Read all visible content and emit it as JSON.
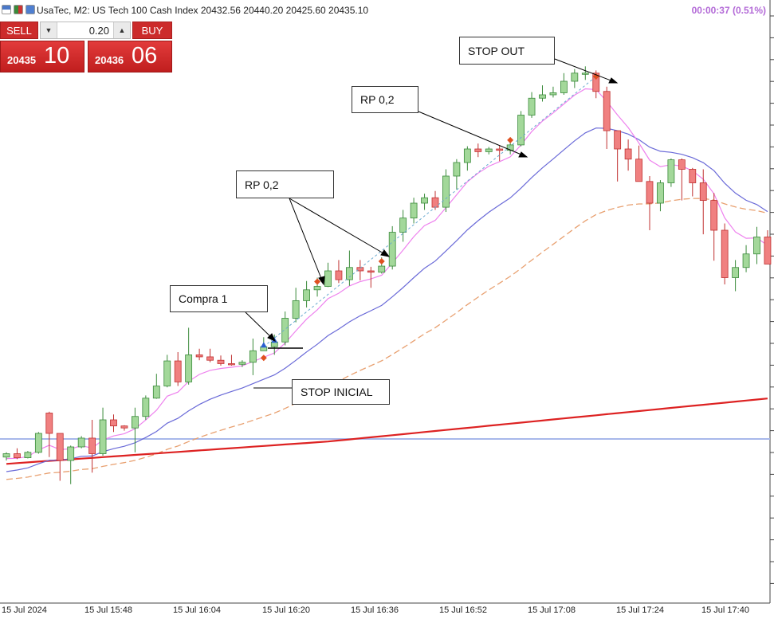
{
  "header": {
    "title": "UsaTec, M2:  US Tech 100 Cash Index  20432.56 20440.20 20425.60 20435.10",
    "timer": "00:00:37 (0.51%)"
  },
  "trade_panel": {
    "sell_label": "SELL",
    "buy_label": "BUY",
    "volume": "0.20",
    "sell_price_small": "20435",
    "sell_price_big": "10",
    "buy_price_small": "20436",
    "buy_price_big": "06"
  },
  "colors": {
    "bull": "#a3d89a",
    "bear": "#f08080",
    "ma_fast": "#ee82ee",
    "ma_mid": "#6a6ad8",
    "ma_slow": "#e8a070",
    "ma_long": "#dd2222"
  },
  "annotations": [
    {
      "id": "compra-1",
      "text": "Compra 1"
    },
    {
      "id": "stop-inicial",
      "text": "STOP INICIAL"
    },
    {
      "id": "rp-1",
      "text": "RP 0,2"
    },
    {
      "id": "rp-2",
      "text": "RP 0,2"
    },
    {
      "id": "stop-out",
      "text": "STOP OUT"
    }
  ],
  "chart_data": {
    "type": "candlestick",
    "symbol": "UsaTec",
    "timeframe": "M2",
    "x_tick_labels": [
      "15 Jul 2024",
      "15 Jul 15:48",
      "15 Jul 16:04",
      "15 Jul 16:20",
      "15 Jul 16:36",
      "15 Jul 16:52",
      "15 Jul 17:08",
      "15 Jul 17:24",
      "15 Jul 17:40"
    ],
    "candles": [
      {
        "o": 20,
        "c": 20,
        "h": 20,
        "l": 20
      }
    ],
    "y_units": "relative",
    "ohlc": [
      [
        45,
        50,
        52,
        40
      ],
      [
        50,
        44,
        58,
        42
      ],
      [
        44,
        52,
        54,
        43
      ],
      [
        52,
        80,
        82,
        50
      ],
      [
        110,
        80,
        112,
        45
      ],
      [
        80,
        40,
        45,
        10
      ],
      [
        40,
        60,
        62,
        5
      ],
      [
        60,
        73,
        76,
        58
      ],
      [
        73,
        50,
        100,
        22
      ],
      [
        50,
        100,
        118,
        47
      ],
      [
        100,
        91,
        108,
        82
      ],
      [
        91,
        88,
        92,
        84
      ],
      [
        88,
        105,
        118,
        52
      ],
      [
        105,
        132,
        136,
        100
      ],
      [
        132,
        150,
        168,
        131
      ],
      [
        150,
        187,
        196,
        148
      ],
      [
        187,
        156,
        200,
        150
      ],
      [
        156,
        196,
        236,
        152
      ],
      [
        196,
        193,
        205,
        188
      ],
      [
        193,
        188,
        205,
        185
      ],
      [
        188,
        183,
        195,
        180
      ],
      [
        183,
        182,
        196,
        180
      ],
      [
        182,
        185,
        188,
        178
      ],
      [
        185,
        202,
        220,
        166
      ],
      [
        202,
        208,
        222,
        204
      ],
      [
        208,
        215,
        226,
        196
      ],
      [
        215,
        250,
        260,
        210
      ],
      [
        250,
        276,
        295,
        244
      ],
      [
        276,
        292,
        305,
        266
      ],
      [
        292,
        297,
        310,
        282
      ],
      [
        297,
        320,
        332,
        296
      ],
      [
        320,
        307,
        336,
        302
      ],
      [
        307,
        325,
        350,
        298
      ],
      [
        325,
        320,
        336,
        306
      ],
      [
        320,
        318,
        326,
        295
      ],
      [
        318,
        327,
        340,
        316
      ],
      [
        327,
        377,
        386,
        322
      ],
      [
        377,
        398,
        410,
        363
      ],
      [
        398,
        420,
        428,
        390
      ],
      [
        420,
        428,
        434,
        410
      ],
      [
        428,
        414,
        438,
        410
      ],
      [
        414,
        460,
        470,
        407
      ],
      [
        460,
        480,
        485,
        440
      ],
      [
        480,
        500,
        504,
        468
      ],
      [
        500,
        496,
        508,
        488
      ],
      [
        496,
        500,
        503,
        492
      ],
      [
        500,
        498,
        505,
        482
      ],
      [
        498,
        506,
        510,
        492
      ],
      [
        506,
        550,
        556,
        504
      ],
      [
        550,
        575,
        584,
        546
      ],
      [
        575,
        580,
        594,
        570
      ],
      [
        580,
        583,
        592,
        576
      ],
      [
        583,
        600,
        612,
        580
      ],
      [
        600,
        612,
        618,
        590
      ],
      [
        612,
        612,
        622,
        602
      ],
      [
        612,
        585,
        616,
        575
      ],
      [
        585,
        527,
        592,
        500
      ],
      [
        527,
        500,
        520,
        452
      ],
      [
        500,
        485,
        514,
        468
      ],
      [
        485,
        452,
        505,
        455
      ],
      [
        452,
        420,
        460,
        380
      ],
      [
        420,
        450,
        454,
        408
      ],
      [
        450,
        484,
        486,
        444
      ],
      [
        484,
        470,
        486,
        424
      ],
      [
        470,
        450,
        472,
        430
      ],
      [
        450,
        424,
        470,
        374
      ],
      [
        424,
        380,
        435,
        335
      ],
      [
        380,
        310,
        390,
        300
      ],
      [
        310,
        325,
        336,
        290
      ],
      [
        325,
        345,
        358,
        318
      ],
      [
        345,
        370,
        385,
        330
      ],
      [
        370,
        330,
        380,
        330
      ]
    ],
    "compra_index": 24,
    "rp_indices": [
      29,
      35,
      47
    ],
    "stop_out_index": 55
  }
}
